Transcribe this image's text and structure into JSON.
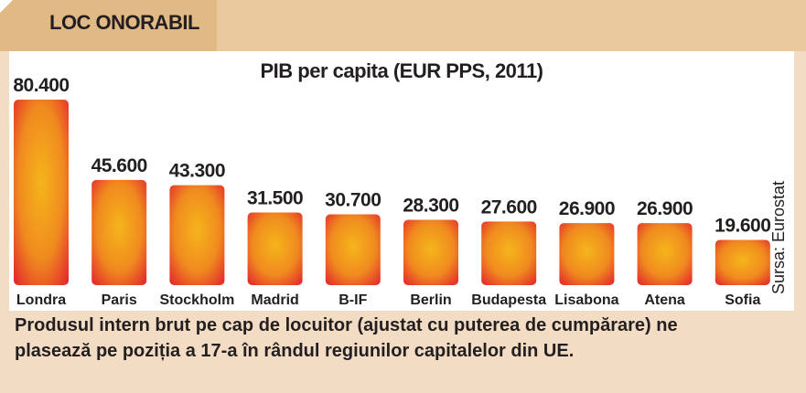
{
  "header": {
    "title": "LOC ONORABIL"
  },
  "source": "Sursa: Eurostat",
  "caption": {
    "line1": "Produsul intern brut pe cap de locuitor (ajustat cu puterea de cumpărare) ne",
    "line2": "plasează pe poziția a 17-a în rândul regiunilor capitalelor din UE."
  },
  "colors": {
    "bar_edge": "#e6202e",
    "bar_center": "#f2ad1c",
    "band": "#e8c89c"
  },
  "chart_data": {
    "type": "bar",
    "title": "PIB per capita (EUR PPS, 2011)",
    "categories": [
      "Londra",
      "Paris",
      "Stockholm",
      "Madrid",
      "B-IF",
      "Berlin",
      "Budapesta",
      "Lisabona",
      "Atena",
      "Sofia"
    ],
    "values": [
      80400,
      45600,
      43300,
      31500,
      30700,
      28300,
      27600,
      26900,
      26900,
      19600
    ],
    "value_labels": [
      "80.400",
      "45.600",
      "43.300",
      "31.500",
      "30.700",
      "28.300",
      "27.600",
      "26.900",
      "26.900",
      "19.600"
    ],
    "xlabel": "",
    "ylabel": "",
    "ylim": [
      0,
      80400
    ],
    "grid": false
  }
}
